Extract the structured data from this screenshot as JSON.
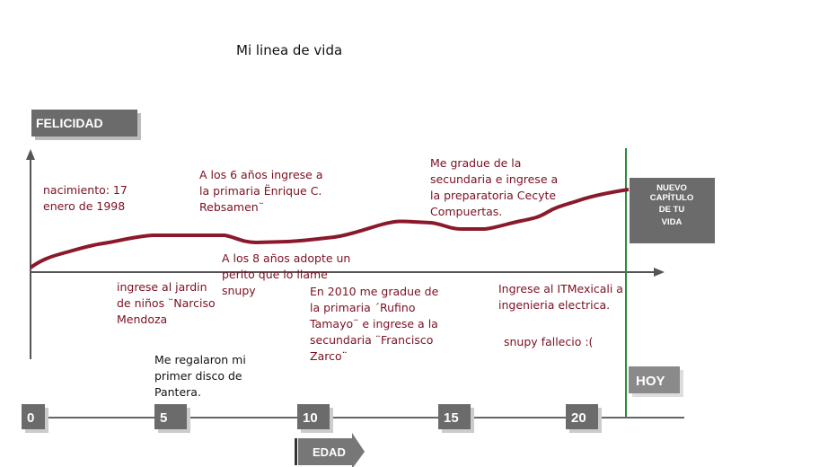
{
  "title": "Mi linea de vida",
  "y_axis_label": "FELICIDAD",
  "x_axis_label": "EDAD",
  "now_label": "HOY",
  "next_chapter": [
    "NUEVO",
    "CAPÍTULO",
    "DE TU",
    "VIDA"
  ],
  "ages": [
    0,
    5,
    10,
    15,
    20
  ],
  "events": [
    {
      "lines": [
        "nacimiento: 17",
        "enero de 1998"
      ]
    },
    {
      "lines": [
        "A los 6 años ingrese a",
        "la primaria Ënrique C.",
        "Rebsamen¨"
      ]
    },
    {
      "lines": [
        "Me gradue de la",
        "secundaria e ingrese a",
        "la preparatoria Cecyte",
        "Compuertas."
      ]
    },
    {
      "lines": [
        "A los 8 años adopte un",
        "perito que lo llame",
        "snupy"
      ]
    },
    {
      "lines": [
        "ingrese al jardin",
        "de niños ¨Narciso",
        "Mendoza"
      ]
    },
    {
      "lines": [
        "En 2010 me gradue de",
        "la primaria ´Rufino",
        "Tamayo¨ e ingrese a la",
        "secundaria ¨Francisco",
        "Zarco¨"
      ]
    },
    {
      "lines": [
        "Ingrese al ITMexicali a",
        "ingenieria electrica."
      ]
    },
    {
      "lines": [
        "snupy fallecio :("
      ]
    },
    {
      "lines": [
        "Me regalaron mi",
        "primer disco de",
        "Pantera."
      ]
    }
  ]
}
